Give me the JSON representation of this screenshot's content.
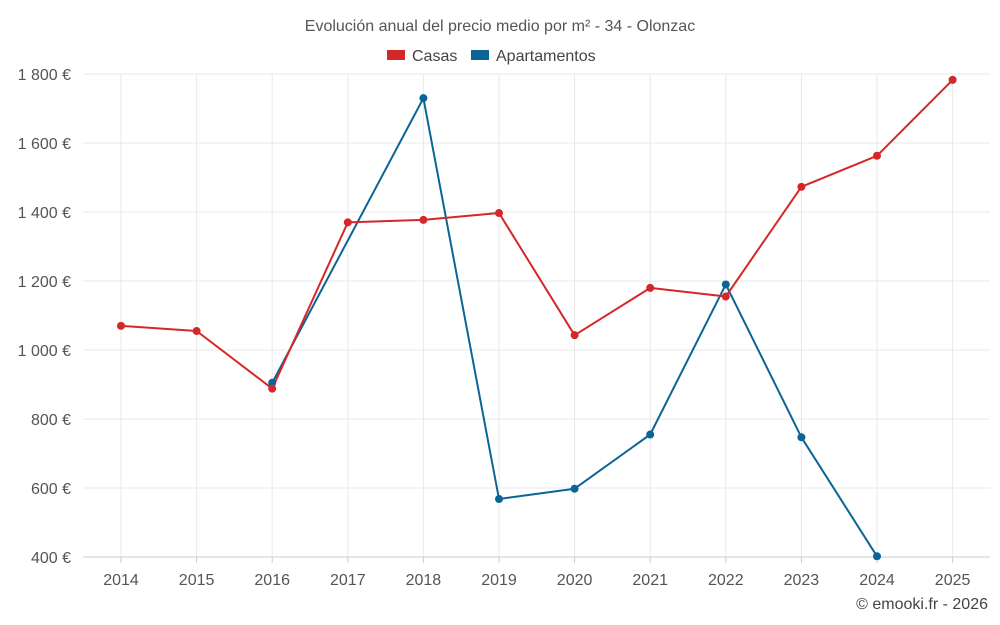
{
  "chart_data": {
    "type": "line",
    "title": "Evolución anual del precio medio por m² - 34 - Olonzac",
    "xlabel": "",
    "ylabel": "",
    "categories": [
      "2014",
      "2015",
      "2016",
      "2017",
      "2018",
      "2019",
      "2020",
      "2021",
      "2022",
      "2023",
      "2024",
      "2025"
    ],
    "ylim": [
      400,
      1800
    ],
    "yticks": [
      400,
      600,
      800,
      1000,
      1200,
      1400,
      1600,
      1800
    ],
    "ytick_labels": [
      "400 €",
      "600 €",
      "800 €",
      "1 000 €",
      "1 200 €",
      "1 400 €",
      "1 600 €",
      "1 800 €"
    ],
    "grid": true,
    "legend_position": "top-center",
    "series": [
      {
        "name": "Casas",
        "color": "#d62728",
        "values": [
          1070,
          1055,
          888,
          1370,
          1377,
          1397,
          1043,
          1180,
          1155,
          1473,
          1563,
          1783
        ]
      },
      {
        "name": "Apartamentos",
        "color": "#0b6496",
        "values": [
          null,
          null,
          905,
          null,
          1730,
          568,
          598,
          755,
          1190,
          747,
          402,
          null
        ]
      }
    ]
  },
  "credit": "© emooki.fr - 2026"
}
